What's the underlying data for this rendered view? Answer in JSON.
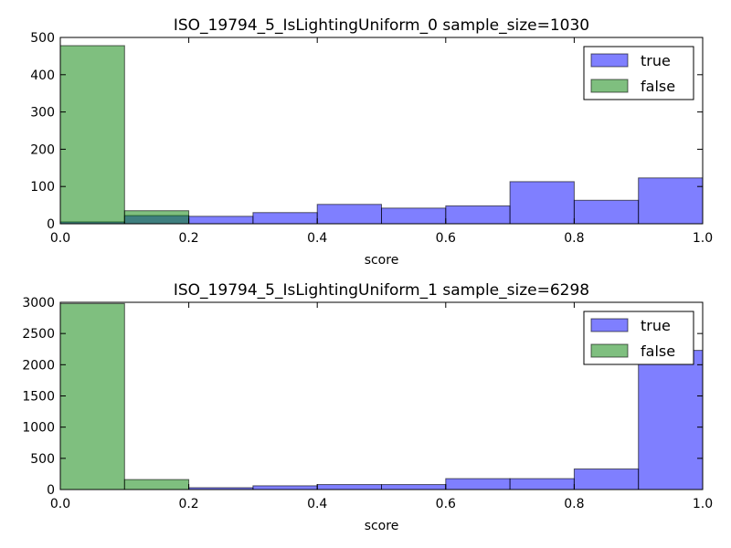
{
  "chart_data": [
    {
      "type": "histogram",
      "title": "ISO_19794_5_IsLightingUniform_0 sample_size=1030",
      "xlabel": "score",
      "ylabel": "",
      "xlim": [
        0.0,
        1.0
      ],
      "ylim": [
        0,
        500
      ],
      "xticks": [
        "0.0",
        "0.2",
        "0.4",
        "0.6",
        "0.8",
        "1.0"
      ],
      "yticks": [
        "0",
        "100",
        "200",
        "300",
        "400",
        "500"
      ],
      "bin_edges": [
        0.0,
        0.1,
        0.2,
        0.3,
        0.4,
        0.5,
        0.6,
        0.7,
        0.8,
        0.9,
        1.0
      ],
      "legend_placement": "top-right",
      "grid": false,
      "series": [
        {
          "name": "true",
          "color": "#0000ff",
          "opacity": 0.5,
          "values": [
            5,
            22,
            20,
            30,
            52,
            42,
            48,
            113,
            63,
            123
          ]
        },
        {
          "name": "false",
          "color": "#008000",
          "opacity": 0.5,
          "values": [
            478,
            35,
            0,
            0,
            0,
            0,
            0,
            0,
            0,
            0
          ]
        }
      ]
    },
    {
      "type": "histogram",
      "title": "ISO_19794_5_IsLightingUniform_1 sample_size=6298",
      "xlabel": "score",
      "ylabel": "",
      "xlim": [
        0.0,
        1.0
      ],
      "ylim": [
        0,
        3000
      ],
      "xticks": [
        "0.0",
        "0.2",
        "0.4",
        "0.6",
        "0.8",
        "1.0"
      ],
      "yticks": [
        "0",
        "500",
        "1000",
        "1500",
        "2000",
        "2500",
        "3000"
      ],
      "bin_edges": [
        0.0,
        0.1,
        0.2,
        0.3,
        0.4,
        0.5,
        0.6,
        0.7,
        0.8,
        0.9,
        1.0
      ],
      "legend_placement": "top-right",
      "grid": false,
      "series": [
        {
          "name": "true",
          "color": "#0000ff",
          "opacity": 0.5,
          "values": [
            0,
            0,
            30,
            60,
            80,
            80,
            175,
            175,
            330,
            2230
          ]
        },
        {
          "name": "false",
          "color": "#008000",
          "opacity": 0.5,
          "values": [
            2980,
            160,
            0,
            0,
            0,
            0,
            0,
            0,
            0,
            0
          ]
        }
      ]
    }
  ]
}
